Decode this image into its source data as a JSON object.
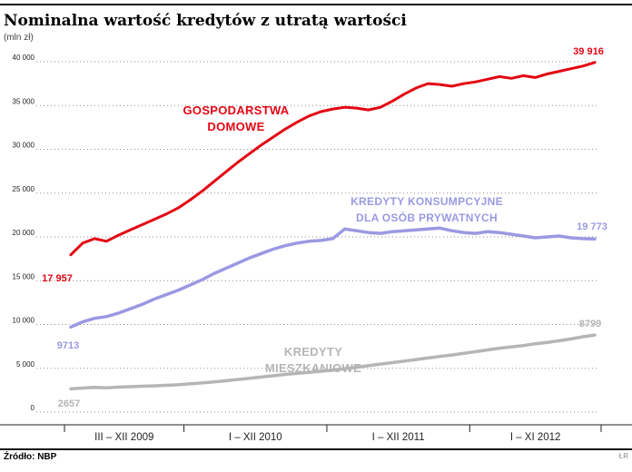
{
  "header": {
    "title": "Nominalna wartość kredytów z utratą wartości",
    "unit": "(mln zł)"
  },
  "footer": {
    "source": "Źródło: NBP",
    "credit": "ŁR"
  },
  "chart_data": {
    "type": "line",
    "title": "Nominalna wartość kredytów z utratą wartości",
    "ylabel": "(mln zł)",
    "ylim": [
      0,
      40000
    ],
    "ytick_step": 5000,
    "yticks": [
      "0",
      "5 000",
      "10 000",
      "15 000",
      "20 000",
      "25 000",
      "30 000",
      "35 000",
      "40 000"
    ],
    "grid": "dotted-horizontal",
    "legend_position": "inline-labels",
    "x_axis_segments": [
      {
        "label": "III – XII 2009",
        "months": 10
      },
      {
        "label": "I – XII 2010",
        "months": 12
      },
      {
        "label": "I – XII 2011",
        "months": 12
      },
      {
        "label": "I – XI 2012",
        "months": 11
      }
    ],
    "series": [
      {
        "name": "GOSPODARSTWA DOMOWE",
        "label_lines": [
          "GOSPODARSTWA",
          "DOMOWE"
        ],
        "color": "#e30613",
        "start_label": "17 957",
        "end_label": "39 916",
        "values": [
          17957,
          19300,
          19800,
          19500,
          20200,
          20800,
          21400,
          22000,
          22600,
          23300,
          24200,
          25200,
          26300,
          27400,
          28500,
          29500,
          30500,
          31400,
          32300,
          33100,
          33800,
          34300,
          34600,
          34800,
          34700,
          34500,
          34800,
          35500,
          36300,
          37000,
          37500,
          37400,
          37200,
          37500,
          37700,
          38000,
          38300,
          38100,
          38400,
          38200,
          38600,
          38900,
          39200,
          39500,
          39916
        ]
      },
      {
        "name": "KREDYTY KONSUMPCYJNE DLA OSÓB PRYWATNYCH",
        "label_lines": [
          "KREDYTY KONSUMPCYJNE",
          "DLA OSÓB PRYWATNYCH"
        ],
        "color": "#9a99e2",
        "start_label": "9713",
        "end_label": "19 773",
        "values": [
          9713,
          10300,
          10700,
          10900,
          11300,
          11800,
          12300,
          12900,
          13400,
          13900,
          14500,
          15100,
          15800,
          16400,
          17000,
          17600,
          18100,
          18600,
          19000,
          19300,
          19500,
          19600,
          19800,
          20900,
          20700,
          20500,
          20400,
          20600,
          20700,
          20800,
          20900,
          21000,
          20700,
          20500,
          20400,
          20600,
          20500,
          20300,
          20100,
          19900,
          20000,
          20100,
          19900,
          19800,
          19773
        ]
      },
      {
        "name": "KREDYTY MIESZKANIOWE",
        "label_lines": [
          "KREDYTY",
          "MIESZKANIOWE"
        ],
        "color": "#b5b5b5",
        "start_label": "2657",
        "end_label": "8799",
        "values": [
          2657,
          2750,
          2820,
          2780,
          2850,
          2900,
          2950,
          3000,
          3060,
          3120,
          3220,
          3330,
          3450,
          3580,
          3720,
          3860,
          4000,
          4150,
          4300,
          4420,
          4540,
          4660,
          4800,
          4950,
          5120,
          5300,
          5480,
          5650,
          5820,
          6000,
          6180,
          6350,
          6520,
          6700,
          6900,
          7100,
          7300,
          7450,
          7600,
          7800,
          7950,
          8150,
          8350,
          8600,
          8799
        ]
      }
    ]
  }
}
